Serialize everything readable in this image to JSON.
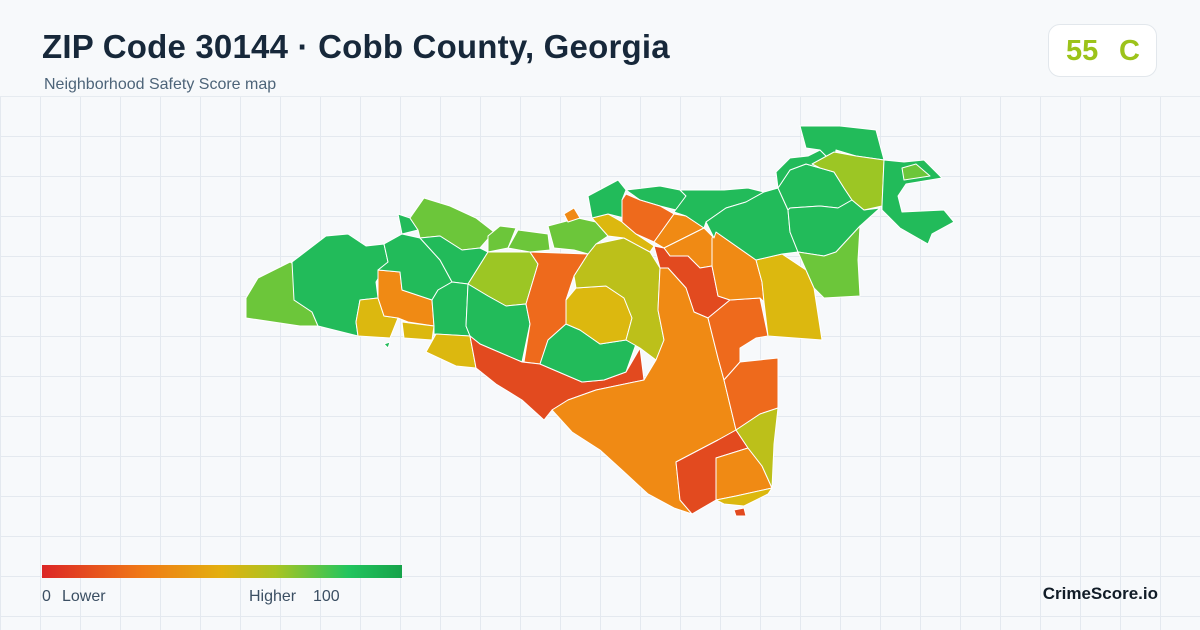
{
  "header": {
    "title": "ZIP Code 30144 · Cobb County, Georgia",
    "subtitle": "Neighborhood Safety Score map"
  },
  "score": {
    "value": "55",
    "grade": "C",
    "color": "#9cc31a"
  },
  "legend": {
    "min": "0",
    "low_label": "Lower",
    "high_label": "Higher",
    "max": "100",
    "colors": [
      "#dc2626",
      "#f07a16",
      "#e3b00f",
      "#a9c422",
      "#22c55e",
      "#16a34a"
    ]
  },
  "brand": "CrimeScore.io",
  "palette": {
    "red": "#e24a1f",
    "orange_red": "#ee6a1c",
    "orange": "#f08a14",
    "amber": "#e3a812",
    "yellow": "#dcb80f",
    "olive": "#bcc01a",
    "yellow_green": "#9cc624",
    "lime": "#6cc63a",
    "green": "#22bb5a",
    "dark_green": "#19a94f"
  }
}
